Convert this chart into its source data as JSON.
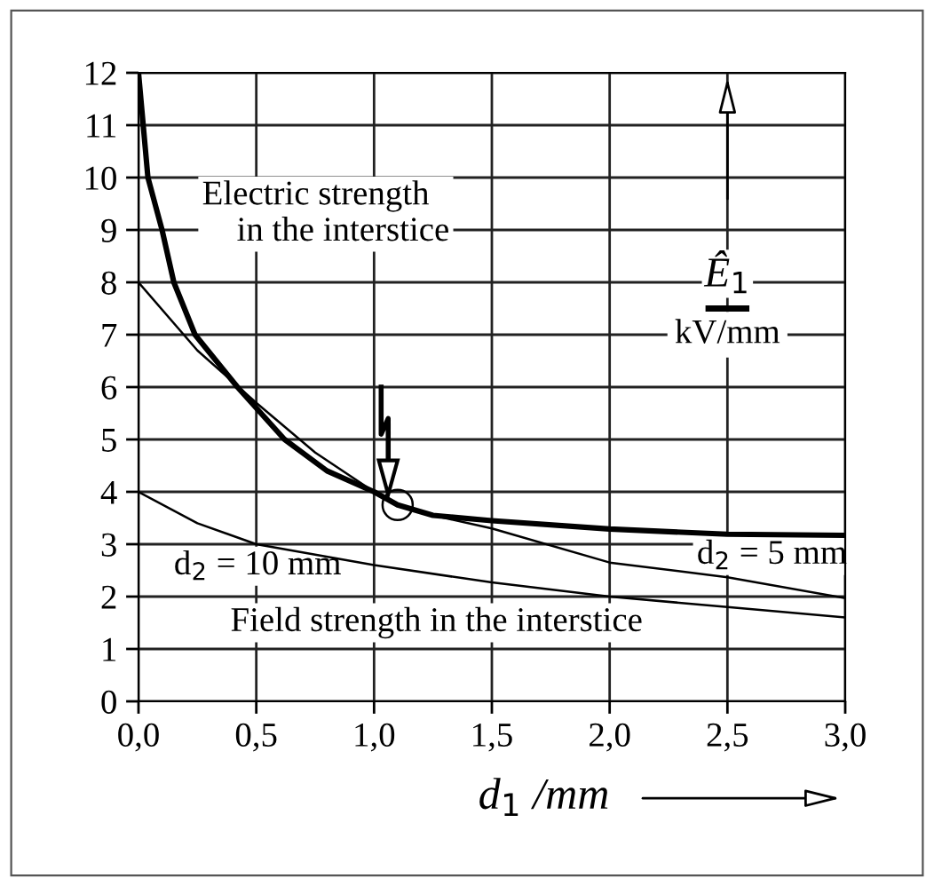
{
  "chart_data": {
    "type": "line",
    "xlabel": "d$_{1}$ /mm",
    "ylabel": "Ê$_{1}$\nkV/mm",
    "series": [
      {
        "color": "#000000",
        "x": [
          0,
          0.02,
          0.04,
          0.1,
          0.15,
          0.24,
          0.42,
          0.62,
          0.8,
          1.0,
          1.1,
          1.25,
          1.5,
          2.0,
          2.5,
          3.0
        ],
        "values": [
          12,
          11,
          10,
          9,
          8,
          7,
          6,
          5,
          4.4,
          4.0,
          3.75,
          3.55,
          3.45,
          3.29,
          3.19,
          3.17
        ]
      },
      {
        "color": "#000000",
        "x": [
          0,
          0.25,
          0.5,
          0.75,
          1.0,
          1.1,
          1.25,
          1.5,
          2.0,
          2.5,
          3.0
        ],
        "values": [
          8,
          6.7,
          5.7,
          4.75,
          4.0,
          3.75,
          3.55,
          3.3,
          2.65,
          2.37,
          1.97
        ]
      },
      {
        "color": "#000000",
        "x": [
          0,
          0.25,
          0.5,
          1.0,
          1.5,
          2.0,
          2.5,
          3.0
        ],
        "values": [
          4.0,
          3.4,
          3.0,
          2.6,
          2.27,
          2.0,
          1.8,
          1.6
        ]
      },
      {
        "type": "scatter",
        "marker": "circle",
        "color": "#000000",
        "x": [
          1.1
        ],
        "values": [
          3.75
        ]
      }
    ],
    "xlim": [
      0,
      3.0
    ],
    "ylim": [
      0,
      12
    ],
    "xticks": [
      {
        "value": 0,
        "label": "0,0"
      },
      {
        "value": 0.5,
        "label": "0,5"
      },
      {
        "value": 1.0,
        "label": "1,0"
      },
      {
        "value": 1.5,
        "label": "1,5"
      },
      {
        "value": 2.0,
        "label": "2,0"
      },
      {
        "value": 2.5,
        "label": "2,5"
      },
      {
        "value": 3.0,
        "label": "3,0"
      }
    ],
    "yticks": [
      0,
      1,
      2,
      3,
      4,
      5,
      6,
      7,
      8,
      9,
      10,
      11,
      12
    ],
    "grid": true,
    "annotations": [
      "Electric strength\n    in the interstice",
      "d$_{2}$ = 10 mm",
      "d$_{2}$ = 5 mm",
      "Field strength in the interstice"
    ]
  }
}
